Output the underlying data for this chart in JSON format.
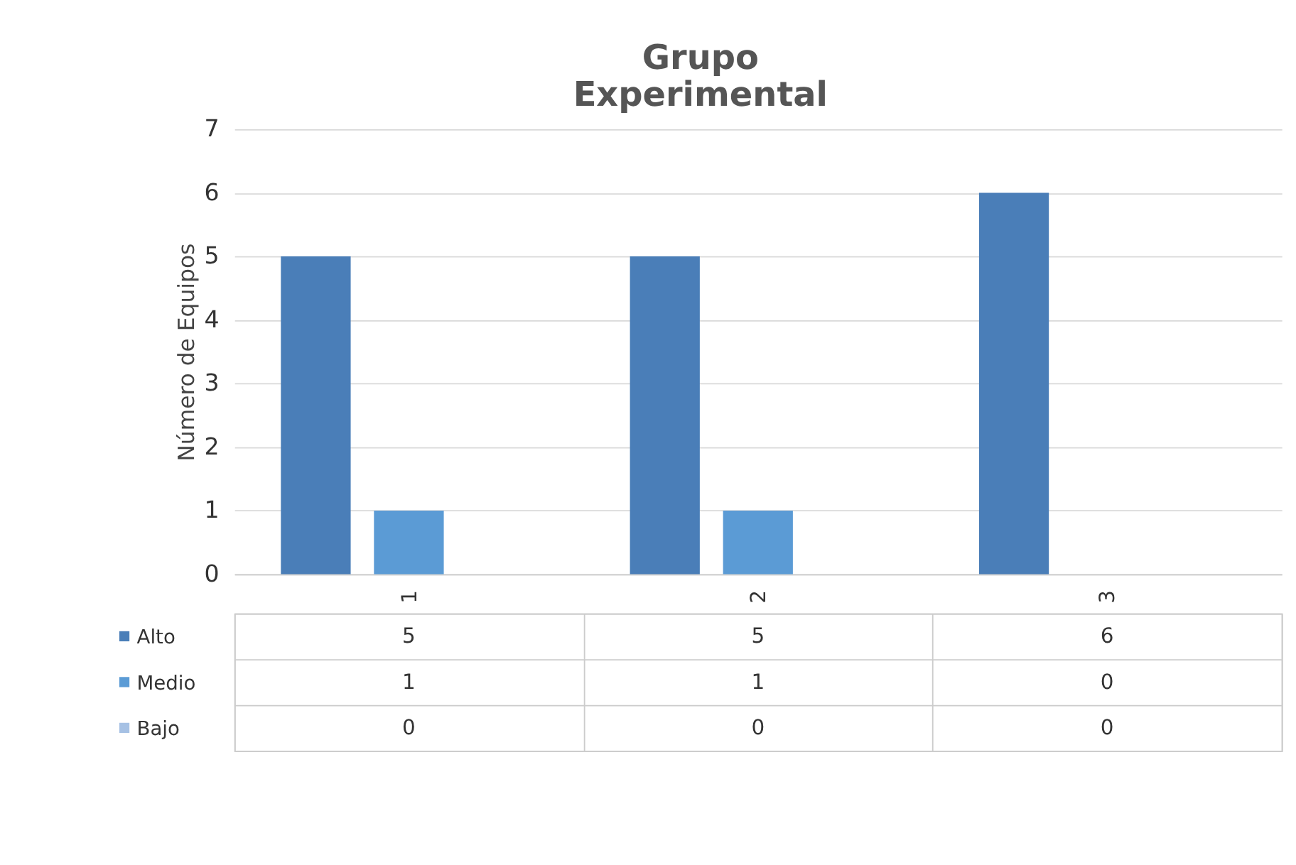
{
  "chart_data": {
    "type": "bar",
    "title": "Grupo Experimental",
    "ylabel": "Número de Equipos",
    "categories": [
      "1",
      "2",
      "3"
    ],
    "series": [
      {
        "name": "Alto",
        "color": "#4a7eb8",
        "values": [
          5,
          5,
          6
        ]
      },
      {
        "name": "Medio",
        "color": "#5b9bd5",
        "values": [
          1,
          1,
          0
        ]
      },
      {
        "name": "Bajo",
        "color": "#a6c1e4",
        "values": [
          0,
          0,
          0
        ]
      }
    ],
    "ylim": [
      0,
      7
    ],
    "yticks": [
      0,
      1,
      2,
      3,
      4,
      5,
      6,
      7
    ],
    "grid": "y",
    "legend": "bottom",
    "data_labels": true
  }
}
